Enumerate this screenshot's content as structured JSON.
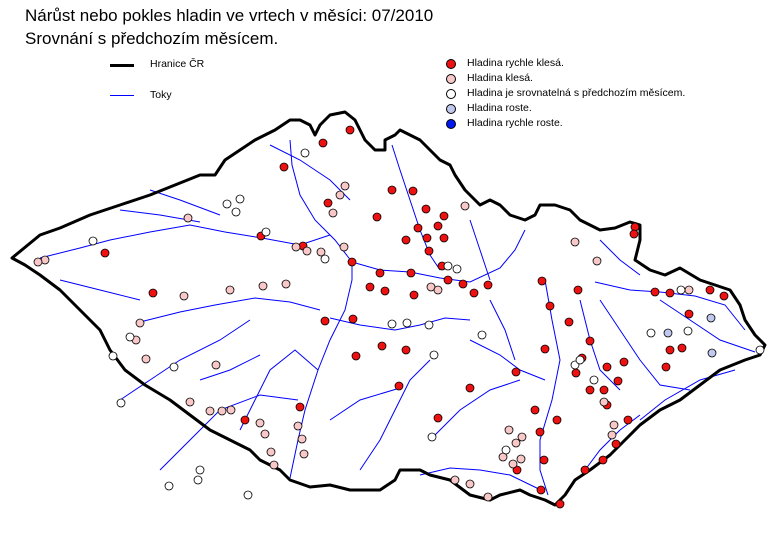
{
  "title": "Nárůst nebo pokles hladin ve vrtech v měsíci: 07/2010",
  "subtitle": "Srovnání s předchozím  měsícem.",
  "legend_lines": [
    {
      "label": "Hranice ČR",
      "color": "#000000"
    },
    {
      "label": "Toky",
      "color": "#0000ff"
    }
  ],
  "legend_points": [
    {
      "label": "Hladina rychle klesá.",
      "color": "#ee1111"
    },
    {
      "label": "Hladina klesá.",
      "color": "#f8c8c8"
    },
    {
      "label": "Hladina je srovnatelná s předchozím měsícem.",
      "color": "#ffffff"
    },
    {
      "label": "Hladina roste.",
      "color": "#c0c8ee"
    },
    {
      "label": "Hladina rychle roste.",
      "color": "#0018ee"
    }
  ]
}
